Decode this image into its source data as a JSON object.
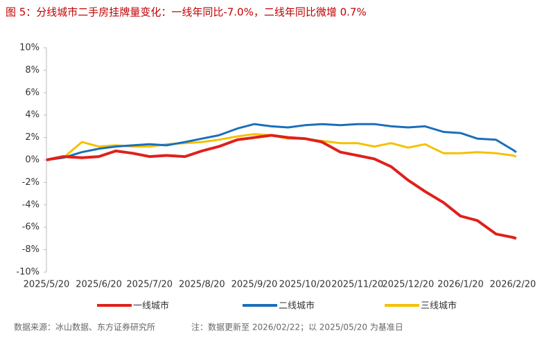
{
  "chart_data": {
    "type": "line",
    "title": "图 5：分线城市二手房挂牌量变化：一线年同比-7.0%，二线年同比微增 0.7%",
    "x": [
      "2025/5/20",
      "2025/5/30",
      "2025/6/10",
      "2025/6/20",
      "2025/6/30",
      "2025/7/10",
      "2025/7/20",
      "2025/7/30",
      "2025/8/10",
      "2025/8/20",
      "2025/8/30",
      "2025/9/10",
      "2025/9/20",
      "2025/9/30",
      "2025/10/10",
      "2025/10/20",
      "2025/10/30",
      "2025/11/10",
      "2025/11/20",
      "2025/11/30",
      "2025/12/10",
      "2025/12/20",
      "2025/12/30",
      "2026/1/10",
      "2026/1/20",
      "2026/1/30",
      "2026/2/10",
      "2026/2/20",
      "2026/2/22"
    ],
    "series": [
      {
        "name": "一线城市",
        "color": "#e0201b",
        "values": [
          0,
          0.3,
          0.2,
          0.3,
          0.8,
          0.6,
          0.3,
          0.4,
          0.3,
          0.8,
          1.2,
          1.8,
          2.0,
          2.2,
          2.0,
          1.9,
          1.6,
          0.7,
          0.4,
          0.1,
          -0.6,
          -1.8,
          -2.8,
          -3.8,
          -5.0,
          -5.4,
          -6.6,
          -6.9,
          -7.0
        ]
      },
      {
        "name": "二线城市",
        "color": "#1a6fba",
        "values": [
          0,
          0.2,
          0.7,
          1.0,
          1.2,
          1.3,
          1.4,
          1.3,
          1.6,
          1.9,
          2.2,
          2.8,
          3.2,
          3.0,
          2.9,
          3.1,
          3.2,
          3.1,
          3.2,
          3.2,
          3.0,
          2.9,
          3.0,
          2.5,
          2.4,
          1.9,
          1.8,
          0.9,
          0.7
        ]
      },
      {
        "name": "三线城市",
        "color": "#f5c000",
        "values": [
          0,
          0.2,
          1.6,
          1.2,
          1.3,
          1.2,
          1.2,
          1.4,
          1.5,
          1.6,
          1.8,
          2.1,
          2.3,
          2.2,
          1.9,
          1.9,
          1.7,
          1.5,
          1.5,
          1.2,
          1.5,
          1.1,
          1.4,
          0.6,
          0.6,
          0.7,
          0.6,
          0.4,
          0.3
        ]
      }
    ],
    "ylim": [
      -10,
      10
    ],
    "yticks": [
      {
        "value": -10,
        "label": "-10%"
      },
      {
        "value": -8,
        "label": "-8%"
      },
      {
        "value": -6,
        "label": "-6%"
      },
      {
        "value": -4,
        "label": "-4%"
      },
      {
        "value": -2,
        "label": "-2%"
      },
      {
        "value": 0,
        "label": "0%"
      },
      {
        "value": 2,
        "label": "2%"
      },
      {
        "value": 4,
        "label": "4%"
      },
      {
        "value": 6,
        "label": "6%"
      },
      {
        "value": 8,
        "label": "8%"
      },
      {
        "value": 10,
        "label": "10%"
      }
    ],
    "xticks": [
      "2025/5/20",
      "2025/6/20",
      "2025/7/20",
      "2025/8/20",
      "2025/9/20",
      "2025/10/20",
      "2025/11/20",
      "2025/12/20",
      "2026/1/20",
      "2026/2/20"
    ],
    "source": "数据来源：冰山数据、东方证券研究所",
    "note": "注：数据更新至 2026/02/22；以 2025/05/20 为基准日"
  }
}
